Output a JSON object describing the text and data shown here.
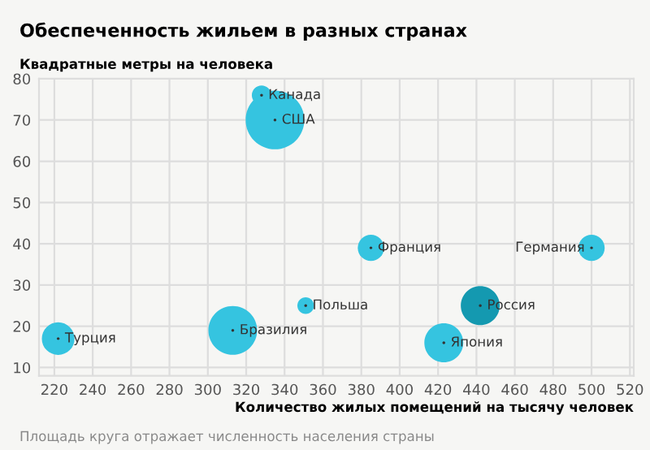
{
  "chart_data": {
    "type": "bubble",
    "title": "Обеспеченность жильем в разных странах",
    "ylabel": "Квадратные метры на человека",
    "xlabel": "Количество жилых помещений на тысячу человек",
    "x": [
      328,
      335,
      385,
      500,
      351,
      442,
      222,
      313,
      423
    ],
    "values": [
      76,
      70,
      39,
      39,
      25,
      25,
      17,
      19,
      16
    ],
    "sizes": [
      0.11,
      1,
      0.2,
      0.2,
      0.08,
      0.44,
      0.31,
      0.69,
      0.44
    ],
    "colors": [
      "#35c4e0",
      "#35c4e0",
      "#35c4e0",
      "#35c4e0",
      "#35c4e0",
      "#1499b0",
      "#35c4e0",
      "#35c4e0",
      "#35c4e0"
    ],
    "xlim": [
      212,
      522
    ],
    "ylim": [
      8,
      80
    ],
    "xticks": [
      220,
      240,
      260,
      280,
      300,
      320,
      340,
      360,
      380,
      400,
      420,
      440,
      460,
      480,
      500,
      520
    ],
    "yticks": [
      10,
      20,
      30,
      40,
      50,
      60,
      70,
      80
    ],
    "grid": true,
    "annotations": [
      {
        "text": "Канада",
        "x": 328,
        "y": 76
      },
      {
        "text": "США",
        "x": 335,
        "y": 70
      },
      {
        "text": "Франция",
        "x": 385,
        "y": 39
      },
      {
        "text": "Германия",
        "x": 500,
        "y": 39
      },
      {
        "text": "Польша",
        "x": 351,
        "y": 25
      },
      {
        "text": "Россия",
        "x": 442,
        "y": 25
      },
      {
        "text": "Турция",
        "x": 222,
        "y": 17
      },
      {
        "text": "Бразилия",
        "x": 313,
        "y": 19
      },
      {
        "text": "Япония",
        "x": 423,
        "y": 16
      },
      "Площадь круга отражает численность населения страны"
    ]
  }
}
